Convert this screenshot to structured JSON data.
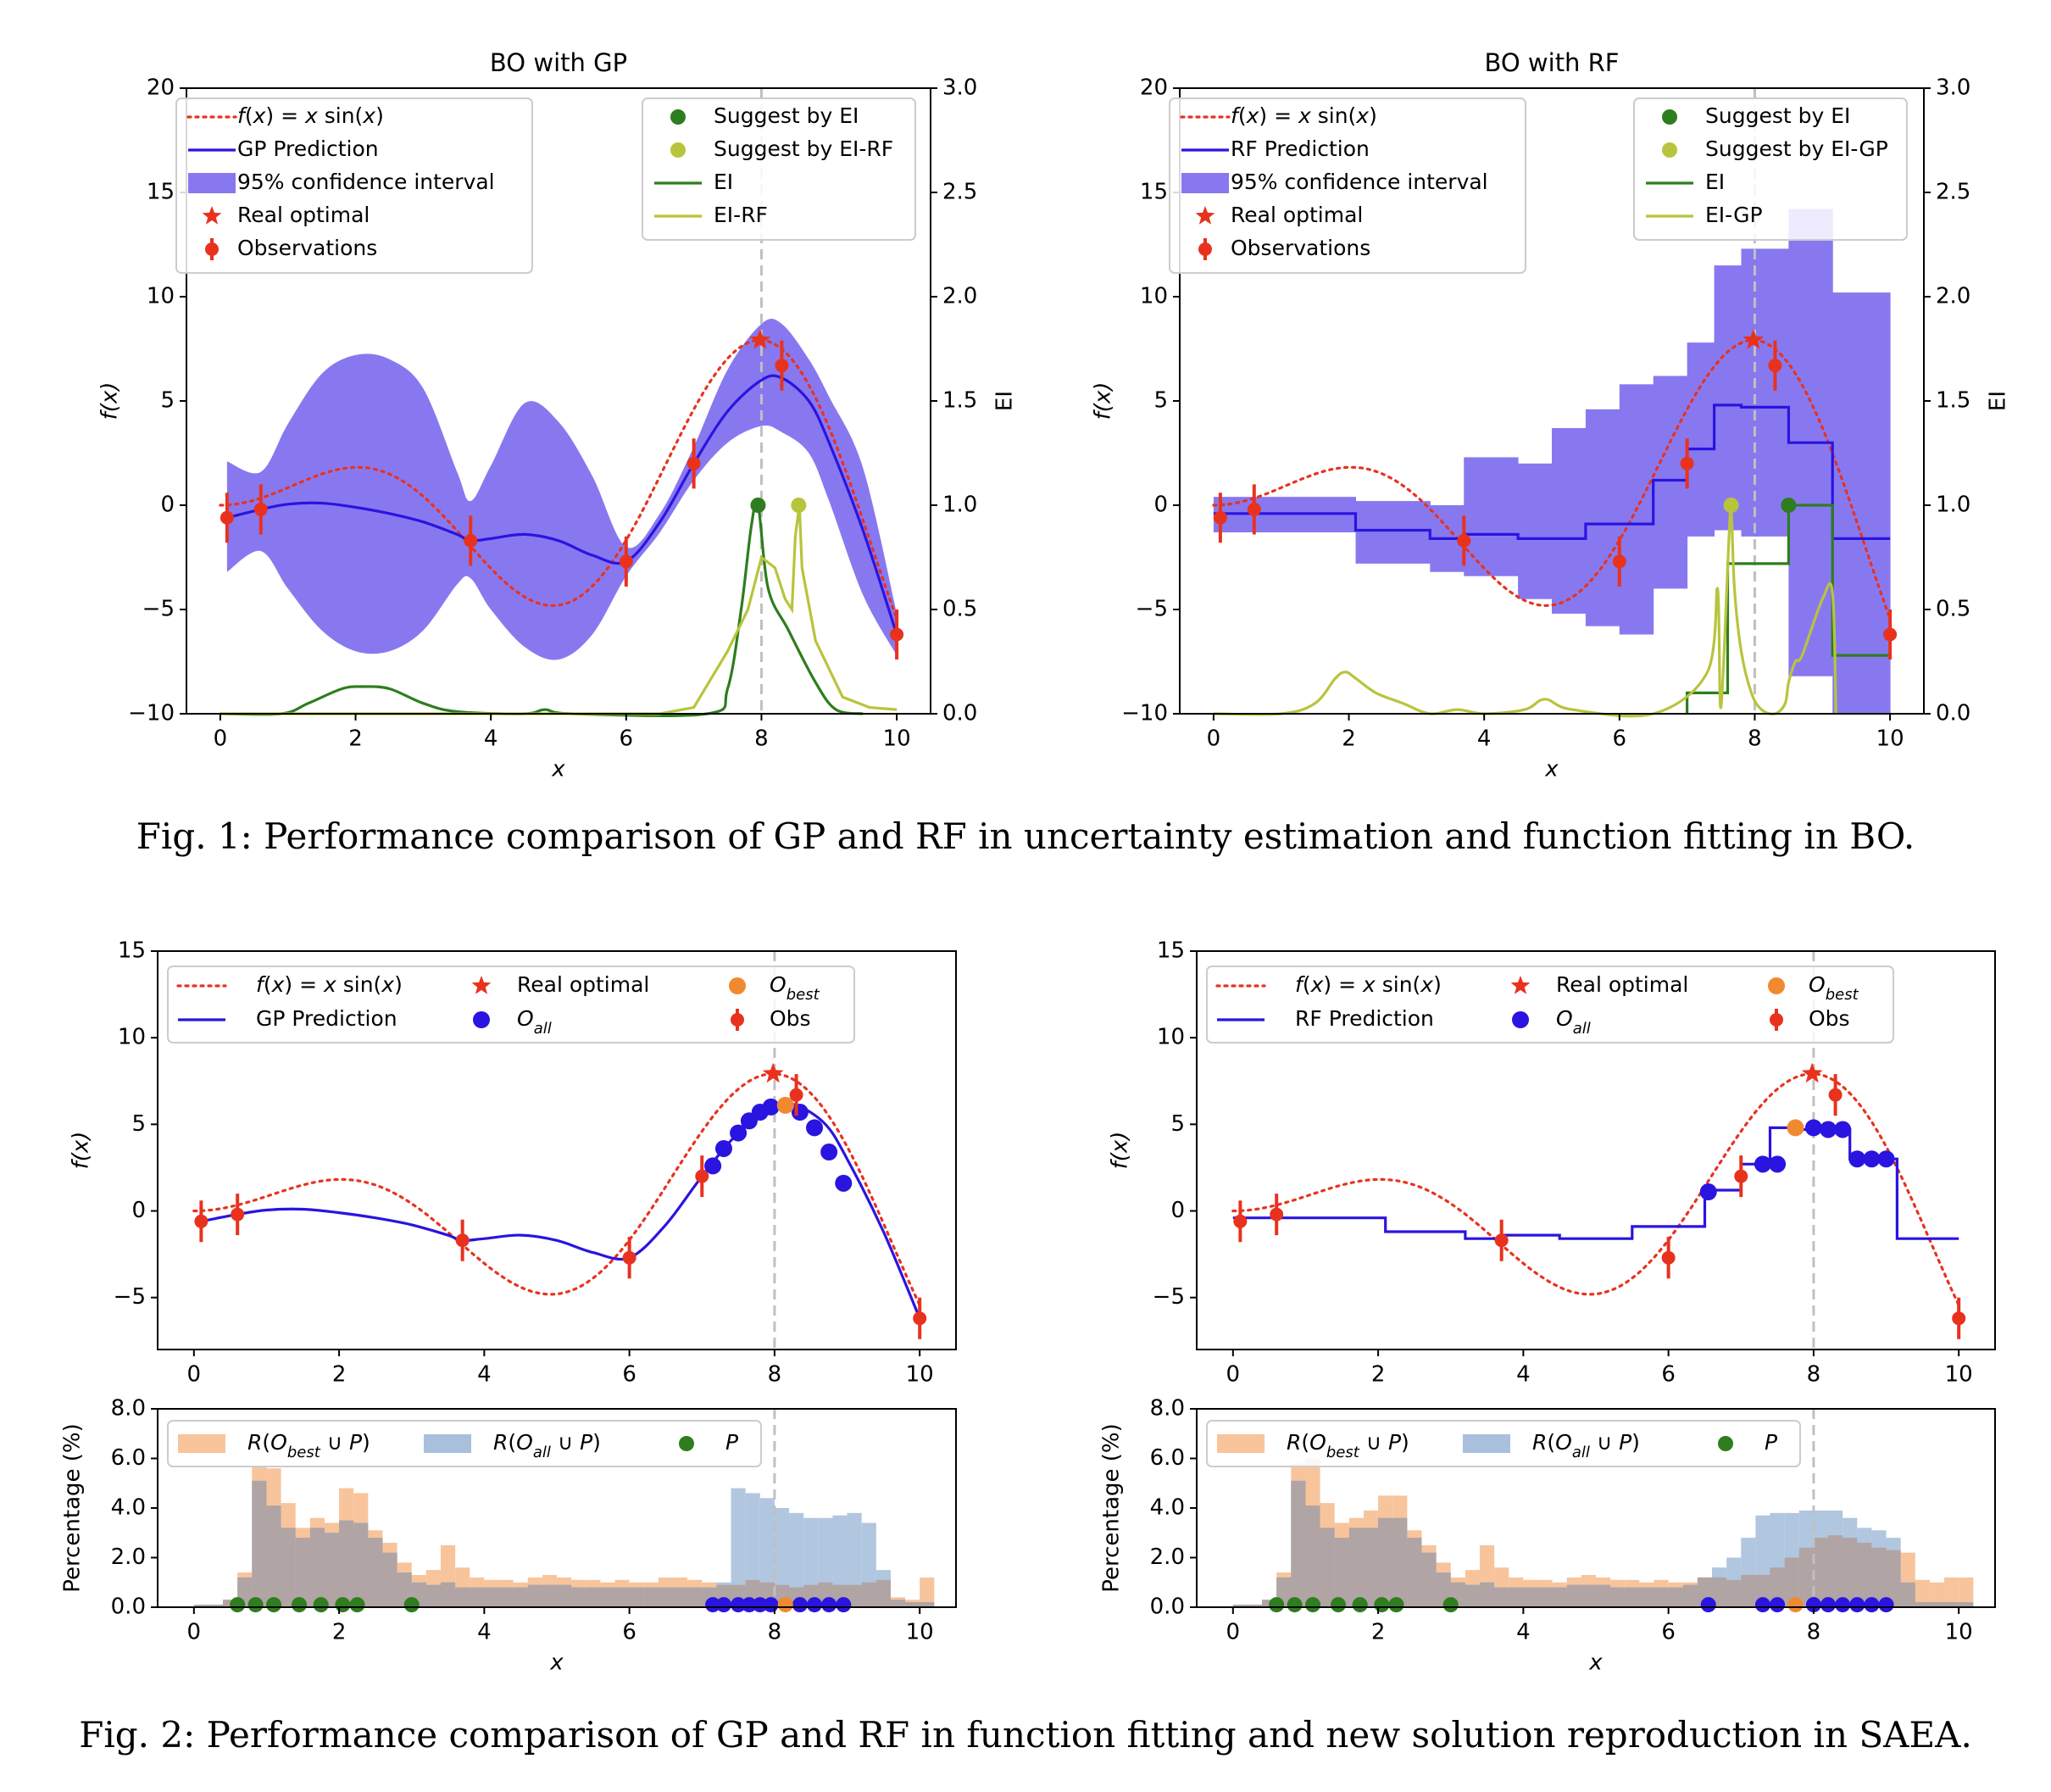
{
  "captions": {
    "fig1": "Fig. 1: Performance comparison of GP and RF in uncertainty estimation and function fitting in BO.",
    "fig2": "Fig. 2: Performance comparison of GP and RF in function fitting and new solution reproduction in SAEA."
  },
  "colors": {
    "true_fn": "#e8321e",
    "prediction": "#2a14e0",
    "ci": "#8878f0",
    "observation": "#e8321e",
    "ei": "#2e7d1e",
    "ei_alt": "#b8c43c",
    "obest": "#f08a30",
    "oall": "#2a14e0",
    "hist_best": "#f8c49c",
    "hist_all": "#a8c0dc",
    "points_p": "#2e7d1e",
    "vline": "#c0c0c0"
  },
  "chart_data": [
    {
      "id": "fig1_gp",
      "type": "line",
      "title": "BO with GP",
      "xlabel": "x",
      "ylabel": "f(x)",
      "ylabel_right": "EI",
      "xlim": [
        -0.5,
        10.5
      ],
      "ylim": [
        -10,
        20
      ],
      "ylim_right": [
        0.0,
        3.0
      ],
      "xticks": [
        0,
        2,
        4,
        6,
        8,
        10
      ],
      "yticks": [
        -10,
        -5,
        0,
        5,
        10,
        15,
        20
      ],
      "yticks_right": [
        "0.0",
        "0.5",
        "1.0",
        "1.5",
        "2.0",
        "2.5",
        "3.0"
      ],
      "vline_x": 8.0,
      "legend_left": [
        "f(x) = x sin(x)",
        "GP Prediction",
        "95% confidence interval",
        "Real optimal",
        "Observations"
      ],
      "legend_right": [
        "Suggest by EI",
        "Suggest by EI-RF",
        "EI",
        "EI-RF"
      ],
      "observations": {
        "x": [
          0.1,
          0.6,
          3.7,
          6.0,
          7.0,
          8.3,
          10.0
        ],
        "y": [
          -0.6,
          -0.2,
          -1.7,
          -2.7,
          2.0,
          6.7,
          -6.2
        ]
      },
      "real_optimal": [
        7.98,
        7.92
      ],
      "prediction": {
        "x": [
          0.1,
          0.6,
          1.0,
          1.5,
          2.0,
          2.5,
          3.0,
          3.5,
          3.7,
          4.0,
          4.5,
          5.0,
          5.5,
          6.0,
          6.5,
          7.0,
          7.5,
          8.0,
          8.3,
          8.7,
          9.0,
          9.5,
          10.0
        ],
        "y": [
          -0.6,
          -0.2,
          0.05,
          0.1,
          -0.1,
          -0.4,
          -0.8,
          -1.4,
          -1.7,
          -1.6,
          -1.4,
          -1.7,
          -2.4,
          -2.7,
          -0.8,
          2.0,
          4.5,
          6.0,
          6.1,
          5.0,
          3.0,
          -1.2,
          -6.2
        ]
      },
      "ci_lower": [
        -3.2,
        -2.2,
        -4.0,
        -6.0,
        -7.0,
        -7.0,
        -6.0,
        -3.8,
        -3.5,
        -5.0,
        -6.8,
        -7.4,
        -6.2,
        -3.4,
        -1.3,
        1.2,
        3.0,
        3.8,
        3.5,
        2.5,
        0.2,
        -4.3,
        -7.2
      ],
      "ci_upper": [
        2.1,
        1.6,
        3.9,
        6.3,
        7.2,
        7.0,
        5.6,
        1.6,
        0.2,
        1.9,
        4.9,
        4.0,
        1.4,
        -2.0,
        -0.4,
        2.8,
        6.5,
        8.7,
        8.7,
        7.0,
        5.2,
        1.8,
        -5.2
      ],
      "ei": {
        "x": [
          0,
          0.9,
          1.3,
          1.8,
          2.1,
          2.5,
          3.0,
          3.5,
          4.5,
          4.8,
          5.2,
          7.2,
          7.5,
          7.7,
          7.85,
          7.95,
          8.1,
          8.4,
          8.8,
          9.1,
          9.5
        ],
        "y": [
          0,
          0,
          0.05,
          0.12,
          0.13,
          0.12,
          0.05,
          0.01,
          0,
          0.02,
          0,
          0,
          0.12,
          0.5,
          0.9,
          1.0,
          0.6,
          0.4,
          0.15,
          0.02,
          0
        ]
      },
      "ei_alt": {
        "x": [
          0,
          6.5,
          7.0,
          7.5,
          7.8,
          8.0,
          8.2,
          8.35,
          8.45,
          8.5,
          8.56,
          8.6,
          8.8,
          9.2,
          9.6,
          10.0
        ],
        "y": [
          0,
          0,
          0.03,
          0.3,
          0.5,
          0.75,
          0.7,
          0.55,
          0.5,
          0.85,
          1.0,
          0.7,
          0.35,
          0.08,
          0.03,
          0.02
        ]
      },
      "suggest_ei": [
        7.95,
        1.0
      ],
      "suggest_alt": [
        8.55,
        1.0
      ]
    },
    {
      "id": "fig1_rf",
      "type": "line",
      "title": "BO with RF",
      "xlabel": "x",
      "ylabel": "f(x)",
      "ylabel_right": "EI",
      "xlim": [
        -0.5,
        10.5
      ],
      "ylim": [
        -10,
        20
      ],
      "ylim_right": [
        0.0,
        3.0
      ],
      "xticks": [
        0,
        2,
        4,
        6,
        8,
        10
      ],
      "yticks": [
        -10,
        -5,
        0,
        5,
        10,
        15,
        20
      ],
      "yticks_right": [
        "0.0",
        "0.5",
        "1.0",
        "1.5",
        "2.0",
        "2.5",
        "3.0"
      ],
      "vline_x": 8.0,
      "legend_left": [
        "f(x) = x sin(x)",
        "RF Prediction",
        "95% confidence interval",
        "Real optimal",
        "Observations"
      ],
      "legend_right": [
        "Suggest by EI",
        "Suggest by EI-GP",
        "EI",
        "EI-GP"
      ],
      "observations": {
        "x": [
          0.1,
          0.6,
          3.7,
          6.0,
          7.0,
          8.3,
          10.0
        ],
        "y": [
          -0.6,
          -0.2,
          -1.7,
          -2.7,
          2.0,
          6.7,
          -6.2
        ]
      },
      "real_optimal": [
        7.98,
        7.92
      ],
      "steps": [
        {
          "x0": 0.0,
          "x1": 2.1,
          "y": -0.4,
          "lo": -1.3,
          "hi": 0.4
        },
        {
          "x0": 2.1,
          "x1": 3.2,
          "y": -1.2,
          "lo": -2.8,
          "hi": 0.2
        },
        {
          "x0": 3.2,
          "x1": 3.7,
          "y": -1.6,
          "lo": -3.2,
          "hi": 0.0
        },
        {
          "x0": 3.7,
          "x1": 4.5,
          "y": -1.4,
          "lo": -3.4,
          "hi": 2.3
        },
        {
          "x0": 4.5,
          "x1": 5.0,
          "y": -1.6,
          "lo": -4.5,
          "hi": 2.0
        },
        {
          "x0": 5.0,
          "x1": 5.5,
          "y": -1.6,
          "lo": -5.2,
          "hi": 3.7
        },
        {
          "x0": 5.5,
          "x1": 6.0,
          "y": -0.9,
          "lo": -5.8,
          "hi": 4.6
        },
        {
          "x0": 6.0,
          "x1": 6.5,
          "y": -0.9,
          "lo": -6.2,
          "hi": 5.8
        },
        {
          "x0": 6.5,
          "x1": 7.0,
          "y": 1.2,
          "lo": -4.0,
          "hi": 6.2
        },
        {
          "x0": 7.0,
          "x1": 7.4,
          "y": 2.7,
          "lo": -1.5,
          "hi": 7.8
        },
        {
          "x0": 7.4,
          "x1": 7.8,
          "y": 4.8,
          "lo": -1.2,
          "hi": 11.5
        },
        {
          "x0": 7.8,
          "x1": 8.5,
          "y": 4.7,
          "lo": -1.5,
          "hi": 12.3
        },
        {
          "x0": 8.5,
          "x1": 9.15,
          "y": 3.0,
          "lo": -8.2,
          "hi": 14.2
        },
        {
          "x0": 9.15,
          "x1": 10.0,
          "y": -1.6,
          "lo": -10.0,
          "hi": 10.2
        }
      ],
      "ei": {
        "x": [
          7.0,
          7.0,
          7.6,
          7.6,
          8.0,
          8.0,
          8.5,
          8.5,
          9.15,
          9.15,
          10.0
        ],
        "y": [
          0.0,
          0.1,
          0.1,
          0.72,
          0.72,
          0.72,
          0.72,
          1.0,
          1.0,
          0.28,
          0.28
        ]
      },
      "ei_alt": {
        "x": [
          0,
          1.0,
          1.5,
          1.8,
          1.95,
          2.1,
          2.4,
          2.8,
          3.2,
          3.6,
          4.0,
          4.6,
          4.9,
          5.3,
          6.5,
          7.3,
          7.45,
          7.5,
          7.62,
          7.65,
          7.7,
          7.8,
          7.95,
          8.1,
          8.3,
          8.45,
          8.5,
          8.6,
          8.7,
          9.0,
          9.15,
          9.2
        ],
        "y": [
          0,
          0,
          0.05,
          0.17,
          0.2,
          0.17,
          0.1,
          0.05,
          0,
          0.02,
          0,
          0.02,
          0.07,
          0.02,
          0,
          0.2,
          0.6,
          0.03,
          0.85,
          1.0,
          0.6,
          0.3,
          0.1,
          0.02,
          0,
          0.05,
          0.15,
          0.25,
          0.28,
          0.55,
          0.58,
          0
        ]
      },
      "suggest_ei": [
        8.5,
        1.0
      ],
      "suggest_alt": [
        7.65,
        1.0
      ]
    },
    {
      "id": "fig2_gp",
      "type": "line",
      "xlabel": "",
      "ylabel": "f(x)",
      "xlim": [
        -0.5,
        10.5
      ],
      "ylim": [
        -8,
        15
      ],
      "xticks": [
        0,
        2,
        4,
        6,
        8,
        10
      ],
      "yticks": [
        -5,
        0,
        5,
        10,
        15
      ],
      "vline_x": 8.0,
      "legend": [
        "f(x) = x sin(x)",
        "GP Prediction",
        "Real optimal",
        "O_all",
        "O_best",
        "Obs"
      ],
      "observations": {
        "x": [
          0.1,
          0.6,
          3.7,
          6.0,
          7.0,
          8.3,
          10.0
        ],
        "y": [
          -0.6,
          -0.2,
          -1.7,
          -2.7,
          2.0,
          6.7,
          -6.2
        ]
      },
      "real_optimal": [
        7.98,
        7.92
      ],
      "prediction": {
        "x": [
          0.1,
          0.6,
          1.0,
          1.5,
          2.0,
          2.5,
          3.0,
          3.5,
          3.7,
          4.0,
          4.5,
          5.0,
          5.5,
          6.0,
          6.5,
          7.0,
          7.5,
          8.0,
          8.3,
          8.7,
          9.0,
          9.5,
          10.0
        ],
        "y": [
          -0.6,
          -0.2,
          0.05,
          0.1,
          -0.1,
          -0.4,
          -0.8,
          -1.4,
          -1.7,
          -1.6,
          -1.4,
          -1.7,
          -2.4,
          -2.7,
          -0.8,
          2.0,
          4.5,
          6.0,
          6.1,
          5.0,
          3.0,
          -1.2,
          -6.2
        ]
      },
      "oall": {
        "x": [
          7.15,
          7.3,
          7.5,
          7.65,
          7.8,
          7.95,
          8.35,
          8.55,
          8.75,
          8.95
        ],
        "y": [
          2.6,
          3.6,
          4.5,
          5.2,
          5.7,
          6.0,
          5.7,
          4.8,
          3.4,
          1.6
        ]
      },
      "obest": [
        8.15,
        6.1
      ]
    },
    {
      "id": "fig2_gp_hist",
      "type": "bar",
      "xlabel": "x",
      "ylabel": "Percentage (%)",
      "xlim": [
        -0.5,
        10.5
      ],
      "ylim": [
        0,
        8
      ],
      "xticks": [
        0,
        2,
        4,
        6,
        8,
        10
      ],
      "yticks": [
        "0.0",
        "2.0",
        "4.0",
        "6.0",
        "8.0"
      ],
      "vline_x": 8.0,
      "legend": [
        "R(O_best ∪ P)",
        "R(O_all ∪ P)",
        "P"
      ],
      "bin_start": 0.0,
      "bin_width": 0.2,
      "series": [
        {
          "name": "R(O_best ∪ P)",
          "values": [
            0.1,
            0.1,
            0.3,
            1.4,
            5.7,
            5.6,
            4.2,
            3.2,
            3.6,
            3.4,
            4.8,
            4.6,
            3.1,
            2.6,
            1.8,
            1.3,
            1.5,
            2.5,
            1.6,
            1.2,
            1.1,
            1.1,
            1.0,
            1.2,
            1.3,
            1.2,
            1.1,
            1.1,
            1.0,
            1.1,
            1.0,
            1.0,
            1.2,
            1.2,
            1.1,
            1.0,
            0.9,
            0.9,
            1.1,
            1.0,
            0.9,
            0.8,
            0.9,
            1.0,
            0.9,
            0.9,
            1.0,
            1.1,
            0.4,
            0.3,
            1.2
          ]
        },
        {
          "name": "R(O_all ∪ P)",
          "values": [
            0.1,
            0.1,
            0.3,
            1.2,
            5.1,
            4.1,
            3.2,
            2.8,
            3.2,
            3.0,
            3.5,
            3.4,
            2.8,
            2.2,
            1.4,
            1.0,
            0.9,
            1.0,
            0.8,
            0.8,
            0.8,
            0.8,
            0.8,
            0.9,
            0.9,
            0.9,
            0.8,
            0.8,
            0.8,
            0.8,
            0.8,
            0.8,
            0.8,
            0.8,
            0.8,
            0.8,
            1.0,
            4.8,
            4.6,
            4.4,
            4.0,
            3.8,
            3.6,
            3.6,
            3.7,
            3.8,
            3.4,
            1.5,
            0.3,
            0.2,
            0.2
          ]
        }
      ],
      "p_points": [
        0.6,
        0.85,
        1.1,
        1.45,
        1.75,
        2.05,
        2.25,
        3.0
      ],
      "oall_points": [
        7.15,
        7.3,
        7.5,
        7.65,
        7.8,
        7.95,
        8.35,
        8.55,
        8.75,
        8.95
      ],
      "obest_point": 8.15
    },
    {
      "id": "fig2_rf",
      "type": "line",
      "xlabel": "",
      "ylabel": "f(x)",
      "xlim": [
        -0.5,
        10.5
      ],
      "ylim": [
        -8,
        15
      ],
      "xticks": [
        0,
        2,
        4,
        6,
        8,
        10
      ],
      "yticks": [
        -5,
        0,
        5,
        10,
        15
      ],
      "vline_x": 8.0,
      "legend": [
        "f(x) = x sin(x)",
        "RF Prediction",
        "Real optimal",
        "O_all",
        "O_best",
        "Obs"
      ],
      "observations": {
        "x": [
          0.1,
          0.6,
          3.7,
          6.0,
          7.0,
          8.3,
          10.0
        ],
        "y": [
          -0.6,
          -0.2,
          -1.7,
          -2.7,
          2.0,
          6.7,
          -6.2
        ]
      },
      "real_optimal": [
        7.98,
        7.92
      ],
      "steps": [
        {
          "x0": 0.0,
          "x1": 2.1,
          "y": -0.4
        },
        {
          "x0": 2.1,
          "x1": 3.2,
          "y": -1.2
        },
        {
          "x0": 3.2,
          "x1": 3.7,
          "y": -1.6
        },
        {
          "x0": 3.7,
          "x1": 4.5,
          "y": -1.4
        },
        {
          "x0": 4.5,
          "x1": 5.0,
          "y": -1.6
        },
        {
          "x0": 5.0,
          "x1": 5.5,
          "y": -1.6
        },
        {
          "x0": 5.5,
          "x1": 6.0,
          "y": -0.9
        },
        {
          "x0": 6.0,
          "x1": 6.5,
          "y": -0.9
        },
        {
          "x0": 6.5,
          "x1": 7.0,
          "y": 1.2
        },
        {
          "x0": 7.0,
          "x1": 7.4,
          "y": 2.7
        },
        {
          "x0": 7.4,
          "x1": 7.8,
          "y": 4.8
        },
        {
          "x0": 7.8,
          "x1": 8.5,
          "y": 4.7
        },
        {
          "x0": 8.5,
          "x1": 9.15,
          "y": 3.0
        },
        {
          "x0": 9.15,
          "x1": 10.0,
          "y": -1.6
        }
      ],
      "oall": {
        "x": [
          6.55,
          7.3,
          7.5,
          8.0,
          8.2,
          8.4,
          8.6,
          8.8,
          9.0
        ],
        "y": [
          1.1,
          2.7,
          2.7,
          4.8,
          4.7,
          4.7,
          3.0,
          3.0,
          3.0
        ]
      },
      "obest": [
        7.75,
        4.8
      ]
    },
    {
      "id": "fig2_rf_hist",
      "type": "bar",
      "xlabel": "x",
      "ylabel": "Percentage (%)",
      "xlim": [
        -0.5,
        10.5
      ],
      "ylim": [
        0,
        8
      ],
      "xticks": [
        0,
        2,
        4,
        6,
        8,
        10
      ],
      "yticks": [
        "0.0",
        "2.0",
        "4.0",
        "6.0",
        "8.0"
      ],
      "vline_x": 8.0,
      "legend": [
        "R(O_best ∪ P)",
        "R(O_all ∪ P)",
        "P"
      ],
      "bin_start": 0.0,
      "bin_width": 0.2,
      "series": [
        {
          "name": "R(O_best ∪ P)",
          "values": [
            0.1,
            0.1,
            0.3,
            1.4,
            5.8,
            6.0,
            4.2,
            3.4,
            3.6,
            3.9,
            4.5,
            4.5,
            3.1,
            2.5,
            1.8,
            1.2,
            1.5,
            2.5,
            1.6,
            1.2,
            1.1,
            1.1,
            1.0,
            1.2,
            1.3,
            1.2,
            1.1,
            1.1,
            1.0,
            1.1,
            1.0,
            1.0,
            1.2,
            1.2,
            1.1,
            1.3,
            1.3,
            1.6,
            2.0,
            2.4,
            2.8,
            2.9,
            2.8,
            2.6,
            2.4,
            2.3,
            2.2,
            1.1,
            1.0,
            1.2,
            1.2
          ]
        },
        {
          "name": "R(O_all ∪ P)",
          "values": [
            0.1,
            0.1,
            0.3,
            1.2,
            5.1,
            4.1,
            3.2,
            2.8,
            3.2,
            3.2,
            3.6,
            3.6,
            2.8,
            2.2,
            1.4,
            1.0,
            0.9,
            1.0,
            0.8,
            0.8,
            0.8,
            0.8,
            0.8,
            0.9,
            0.9,
            0.9,
            0.8,
            0.8,
            0.8,
            0.8,
            0.8,
            0.9,
            1.2,
            1.6,
            2.0,
            2.8,
            3.7,
            3.8,
            3.8,
            3.9,
            3.9,
            3.9,
            3.6,
            3.2,
            3.1,
            2.8,
            1.0,
            0.2,
            0.2,
            0.2,
            0.2
          ]
        }
      ],
      "p_points": [
        0.6,
        0.85,
        1.1,
        1.45,
        1.75,
        2.05,
        2.25,
        3.0
      ],
      "oall_points": [
        6.55,
        7.3,
        7.5,
        8.0,
        8.2,
        8.4,
        8.6,
        8.8,
        9.0
      ],
      "obest_point": 7.75
    }
  ]
}
